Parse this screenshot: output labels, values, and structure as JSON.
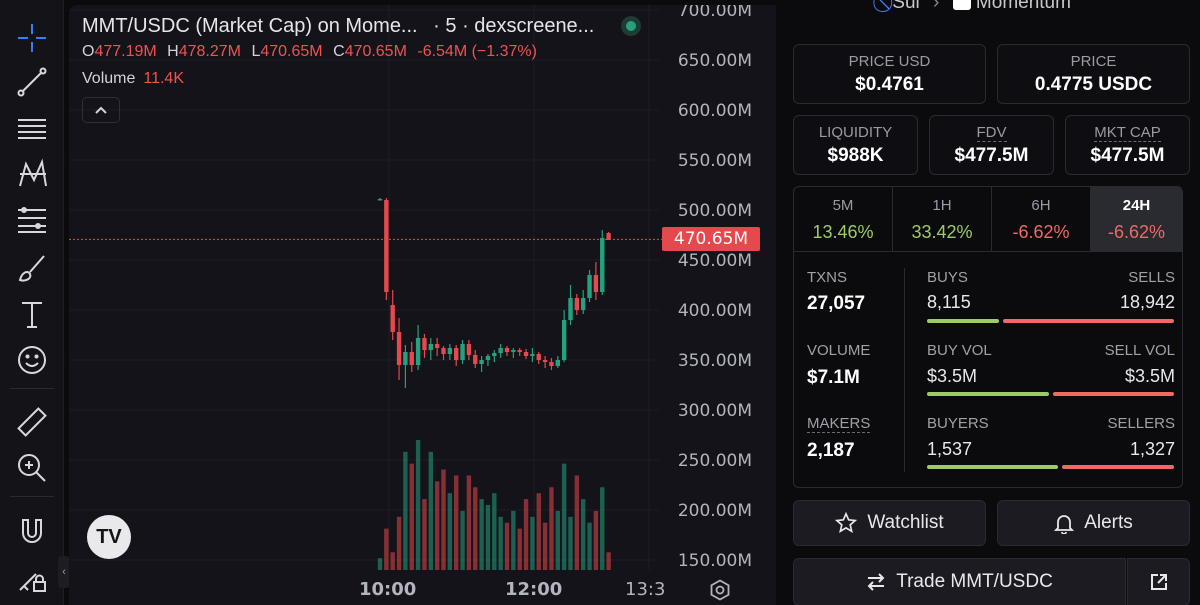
{
  "chart": {
    "title": "MMT/USDC (Market Cap) on Mome...",
    "interval_source": "· 5 · dexscreene...",
    "ohlc": {
      "o_label": "O",
      "o_value": "477.19M",
      "h_label": "H",
      "h_value": "478.27M",
      "l_label": "L",
      "l_value": "470.65M",
      "c_label": "C",
      "c_value": "470.65M",
      "change": "-6.54M (−1.37%)"
    },
    "volume_label": "Volume",
    "volume_value": "11.4K",
    "price_axis": [
      "700.00M",
      "650.00M",
      "600.00M",
      "550.00M",
      "500.00M",
      "450.00M",
      "400.00M",
      "350.00M",
      "300.00M",
      "250.00M",
      "200.00M",
      "150.00M"
    ],
    "current_price": "470.65M",
    "time_axis": [
      "10:00",
      "12:00",
      "13:3"
    ],
    "logo_text": "TV",
    "colors": {
      "up": "#26a17f",
      "down": "#e5484d"
    }
  },
  "chart_data": {
    "type": "candlestick",
    "ylim": [
      150,
      700
    ],
    "unit": "M",
    "candles": [
      {
        "o": 510,
        "h": 512,
        "l": 510,
        "c": 511
      },
      {
        "o": 510,
        "h": 512,
        "l": 410,
        "c": 418
      },
      {
        "o": 405,
        "h": 420,
        "l": 370,
        "c": 378
      },
      {
        "o": 378,
        "h": 392,
        "l": 330,
        "c": 345
      },
      {
        "o": 345,
        "h": 365,
        "l": 322,
        "c": 358
      },
      {
        "o": 358,
        "h": 368,
        "l": 338,
        "c": 345
      },
      {
        "o": 345,
        "h": 385,
        "l": 340,
        "c": 372
      },
      {
        "o": 372,
        "h": 376,
        "l": 352,
        "c": 360
      },
      {
        "o": 360,
        "h": 372,
        "l": 350,
        "c": 366
      },
      {
        "o": 366,
        "h": 372,
        "l": 354,
        "c": 362
      },
      {
        "o": 362,
        "h": 364,
        "l": 350,
        "c": 356
      },
      {
        "o": 356,
        "h": 366,
        "l": 350,
        "c": 362
      },
      {
        "o": 362,
        "h": 365,
        "l": 344,
        "c": 350
      },
      {
        "o": 350,
        "h": 370,
        "l": 346,
        "c": 366
      },
      {
        "o": 366,
        "h": 370,
        "l": 350,
        "c": 355
      },
      {
        "o": 355,
        "h": 360,
        "l": 342,
        "c": 346
      },
      {
        "o": 346,
        "h": 354,
        "l": 338,
        "c": 350
      },
      {
        "o": 350,
        "h": 356,
        "l": 344,
        "c": 354
      },
      {
        "o": 354,
        "h": 360,
        "l": 348,
        "c": 357
      },
      {
        "o": 357,
        "h": 366,
        "l": 352,
        "c": 362
      },
      {
        "o": 362,
        "h": 364,
        "l": 354,
        "c": 358
      },
      {
        "o": 358,
        "h": 362,
        "l": 352,
        "c": 360
      },
      {
        "o": 360,
        "h": 362,
        "l": 354,
        "c": 358
      },
      {
        "o": 358,
        "h": 361,
        "l": 351,
        "c": 354
      },
      {
        "o": 354,
        "h": 362,
        "l": 348,
        "c": 356
      },
      {
        "o": 356,
        "h": 358,
        "l": 346,
        "c": 350
      },
      {
        "o": 350,
        "h": 354,
        "l": 342,
        "c": 348
      },
      {
        "o": 348,
        "h": 352,
        "l": 340,
        "c": 344
      },
      {
        "o": 344,
        "h": 354,
        "l": 342,
        "c": 350
      },
      {
        "o": 350,
        "h": 400,
        "l": 348,
        "c": 390
      },
      {
        "o": 390,
        "h": 425,
        "l": 385,
        "c": 412
      },
      {
        "o": 412,
        "h": 416,
        "l": 395,
        "c": 400
      },
      {
        "o": 400,
        "h": 420,
        "l": 396,
        "c": 412
      },
      {
        "o": 412,
        "h": 440,
        "l": 408,
        "c": 435
      },
      {
        "o": 435,
        "h": 448,
        "l": 410,
        "c": 418
      },
      {
        "o": 418,
        "h": 480,
        "l": 415,
        "c": 472
      },
      {
        "o": 477,
        "h": 478,
        "l": 470,
        "c": 470
      }
    ],
    "volume": [
      2,
      7,
      3,
      9,
      20,
      18,
      22,
      12,
      20,
      15,
      17,
      13,
      16,
      10,
      16,
      14,
      12,
      11,
      13,
      9,
      8,
      10,
      7,
      12,
      9,
      13,
      8,
      14,
      10,
      18,
      9,
      16,
      12,
      8,
      10,
      14,
      3
    ]
  },
  "panel": {
    "top_chain": "Sui",
    "top_dex": "Momentum",
    "price_usd_label": "PRICE USD",
    "price_usd": "$0.4761",
    "price_label": "PRICE",
    "price": "0.4775 USDC",
    "liquidity_label": "LIQUIDITY",
    "liquidity": "$988K",
    "fdv_label": "FDV",
    "fdv": "$477.5M",
    "mktcap_label": "MKT CAP",
    "mktcap": "$477.5M",
    "timeframes": [
      {
        "label": "5M",
        "value": "13.46%"
      },
      {
        "label": "1H",
        "value": "33.42%"
      },
      {
        "label": "6H",
        "value": "-6.62%"
      },
      {
        "label": "24H",
        "value": "-6.62%"
      }
    ],
    "txns_label": "TXNS",
    "txns": "27,057",
    "buys_label": "BUYS",
    "buys": "8,115",
    "sells_label": "SELLS",
    "sells": "18,942",
    "volume_label": "VOLUME",
    "volume": "$7.1M",
    "buyvol_label": "BUY VOL",
    "buyvol": "$3.5M",
    "sellvol_label": "SELL VOL",
    "sellvol": "$3.5M",
    "makers_label": "MAKERS",
    "makers": "2,187",
    "buyers_label": "BUYERS",
    "buyers": "1,537",
    "sellers_label": "SELLERS",
    "sellers": "1,327",
    "ratios": {
      "buys": 0.3,
      "buyvol": 0.5,
      "buyers": 0.54
    },
    "watchlist_label": "Watchlist",
    "alerts_label": "Alerts",
    "trade_label": "Trade MMT/USDC",
    "colors": {
      "green": "#9ccc65",
      "red": "#ef6a63"
    }
  }
}
